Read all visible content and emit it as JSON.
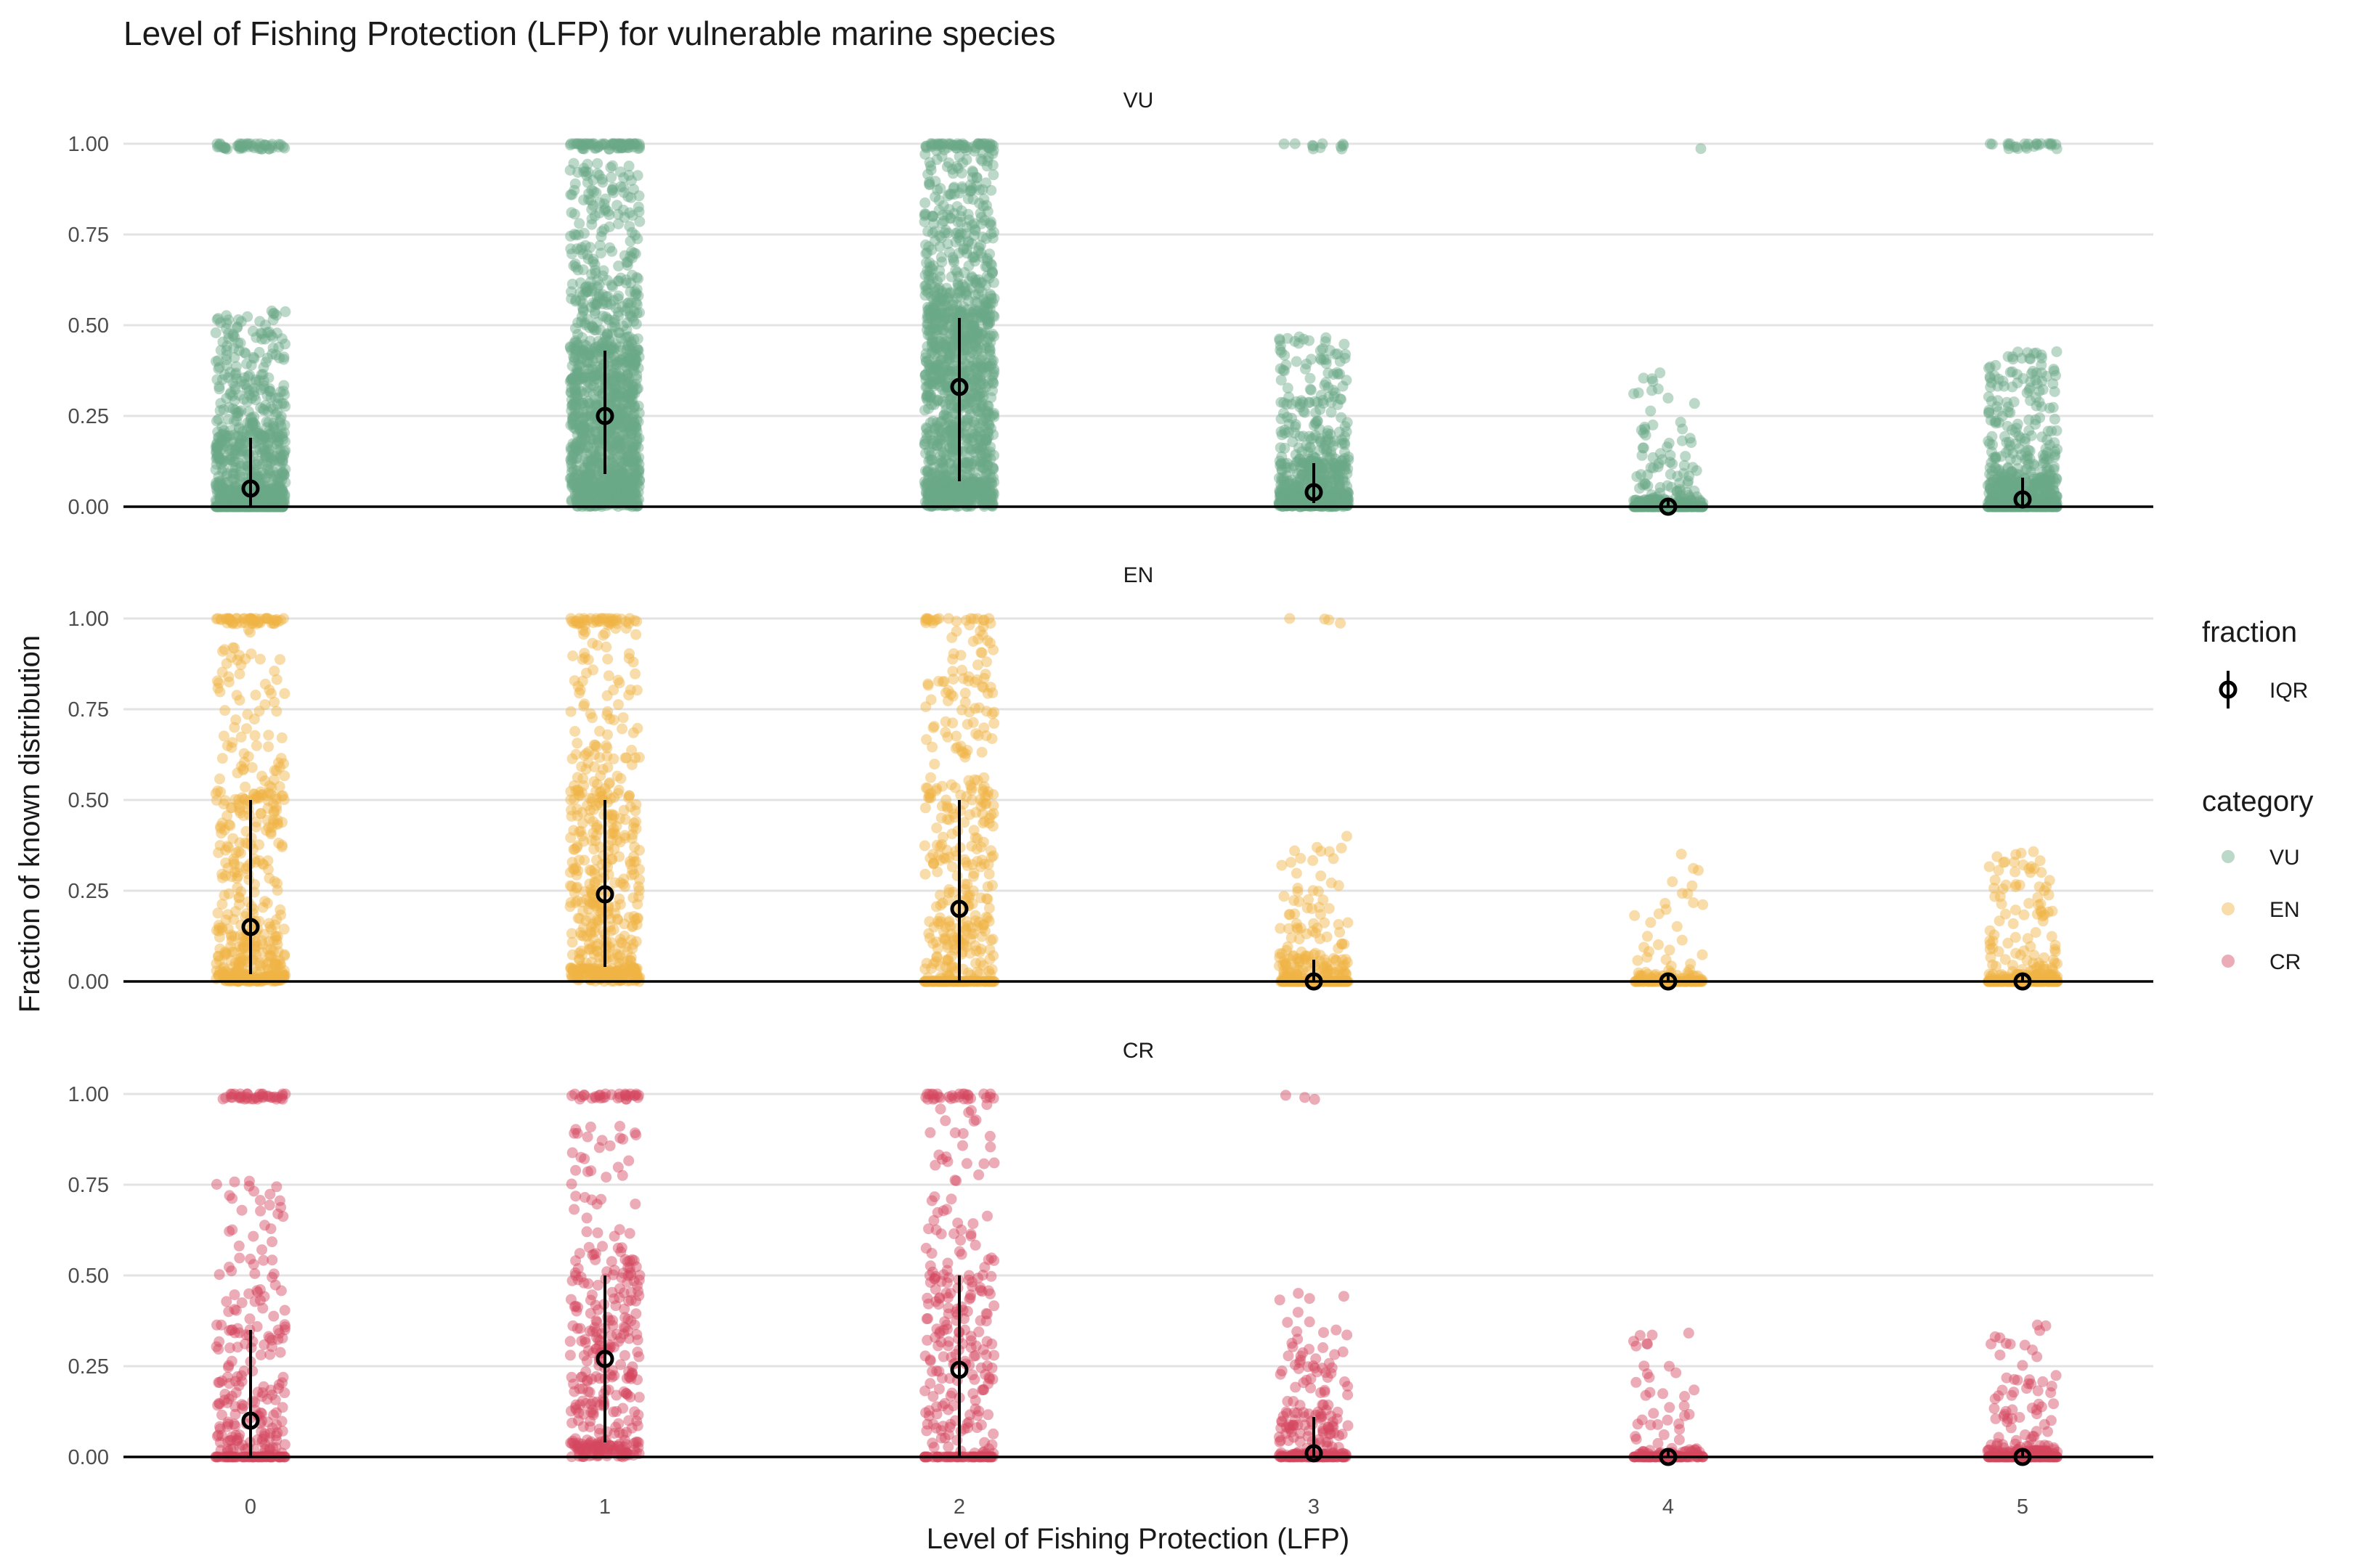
{
  "chart_data": {
    "type": "scatter",
    "title": "Level of Fishing Protection (LFP) for vulnerable marine species",
    "xlabel": "Level of Fishing Protection (LFP)",
    "ylabel": "Fraction of known distribution",
    "x_categories": [
      "0",
      "1",
      "2",
      "3",
      "4",
      "5"
    ],
    "y_ticks": [
      "0.00",
      "0.25",
      "0.50",
      "0.75",
      "1.00"
    ],
    "ylim": [
      0,
      1
    ],
    "grid": true,
    "legend_position": "right",
    "legend": {
      "fraction_title": "fraction",
      "fraction_items": [
        "IQR"
      ],
      "category_title": "category",
      "category_items": [
        "VU",
        "EN",
        "CR"
      ]
    },
    "colors": {
      "VU": "#6aa888",
      "EN": "#f0b344",
      "CR": "#d44860",
      "summary": "#000000"
    },
    "panels": [
      {
        "label": "VU",
        "median": [
          0.05,
          0.25,
          0.33,
          0.04,
          0.0,
          0.02
        ],
        "q1": [
          0.0,
          0.09,
          0.07,
          0.01,
          0.0,
          0.0
        ],
        "q3": [
          0.19,
          0.43,
          0.52,
          0.12,
          0.02,
          0.08
        ],
        "approx_count": [
          900,
          1300,
          1400,
          700,
          350,
          750
        ],
        "share_at_one": [
          0.06,
          0.06,
          0.04,
          0.02,
          0.005,
          0.015
        ]
      },
      {
        "label": "EN",
        "median": [
          0.15,
          0.24,
          0.2,
          0.0,
          0.0,
          0.0
        ],
        "q1": [
          0.02,
          0.04,
          0.0,
          0.0,
          0.0,
          0.0
        ],
        "q3": [
          0.5,
          0.5,
          0.5,
          0.06,
          0.02,
          0.02
        ],
        "approx_count": [
          550,
          550,
          450,
          320,
          150,
          330
        ],
        "share_at_one": [
          0.1,
          0.06,
          0.04,
          0.01,
          0.0,
          0.0
        ]
      },
      {
        "label": "CR",
        "median": [
          0.1,
          0.27,
          0.24,
          0.01,
          0.0,
          0.0
        ],
        "q1": [
          0.0,
          0.04,
          0.0,
          0.0,
          0.0,
          0.0
        ],
        "q3": [
          0.35,
          0.5,
          0.5,
          0.11,
          0.02,
          0.02
        ],
        "approx_count": [
          320,
          380,
          320,
          270,
          160,
          280
        ],
        "share_at_one": [
          0.1,
          0.07,
          0.07,
          0.01,
          0.0,
          0.0
        ]
      }
    ]
  }
}
